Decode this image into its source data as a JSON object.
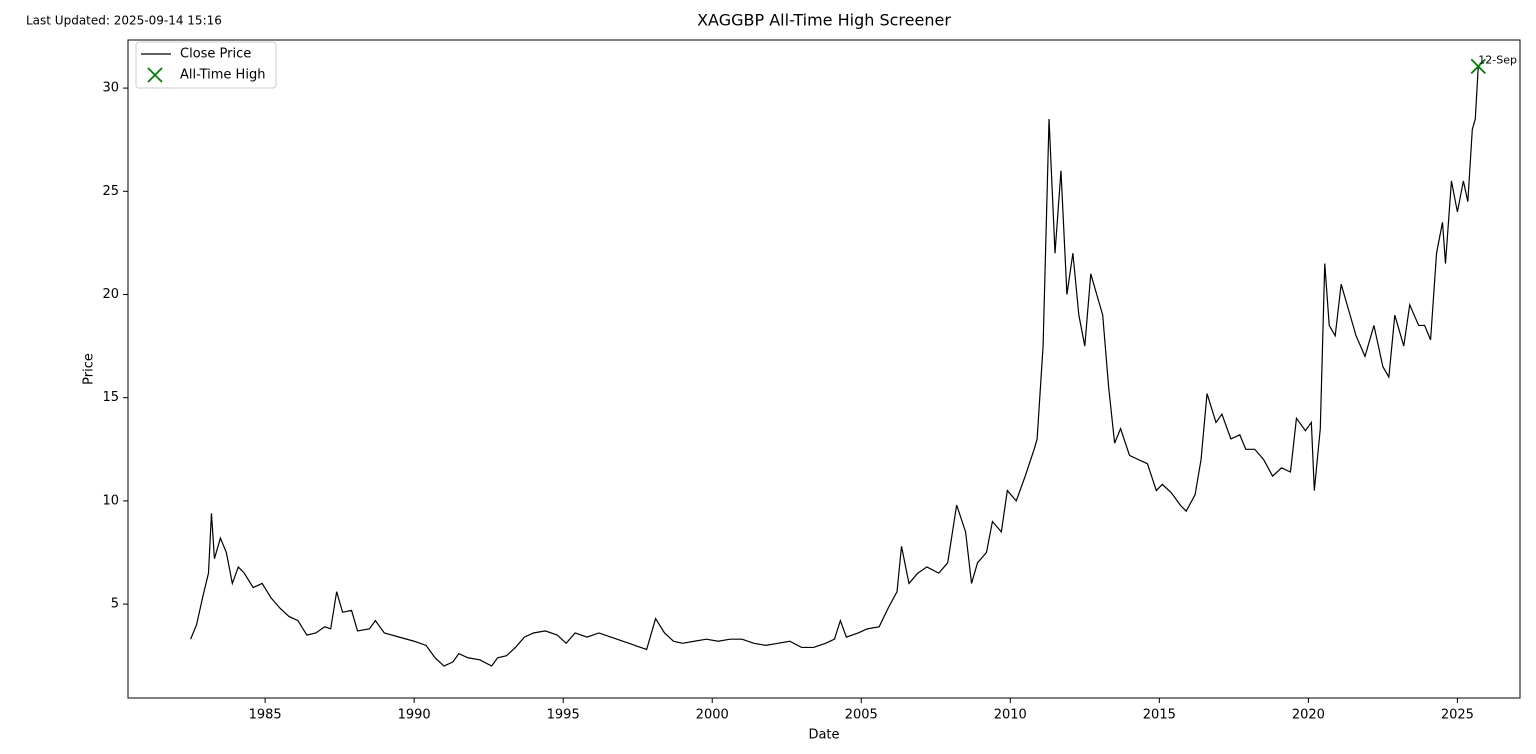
{
  "last_updated": "Last Updated: 2025-09-14 15:16",
  "chart_data": {
    "type": "line",
    "title": "XAGGBP All-Time High Screener",
    "xlabel": "Date",
    "ylabel": "Price",
    "xlim": [
      1980.4,
      2027.1
    ],
    "ylim": [
      0.45,
      32.33
    ],
    "xticks": [
      1985,
      1990,
      1995,
      2000,
      2005,
      2010,
      2015,
      2020,
      2025
    ],
    "yticks": [
      5,
      10,
      15,
      20,
      25,
      30
    ],
    "legend": "upper left",
    "x": [
      1982.5,
      1982.7,
      1982.9,
      1983.1,
      1983.2,
      1983.3,
      1983.5,
      1983.7,
      1983.9,
      1984.1,
      1984.3,
      1984.6,
      1984.9,
      1985.2,
      1985.5,
      1985.8,
      1986.1,
      1986.4,
      1986.7,
      1987.0,
      1987.2,
      1987.4,
      1987.6,
      1987.9,
      1988.1,
      1988.5,
      1988.7,
      1989.0,
      1989.5,
      1990.0,
      1990.4,
      1990.7,
      1991.0,
      1991.3,
      1991.5,
      1991.8,
      1992.2,
      1992.6,
      1992.8,
      1993.1,
      1993.4,
      1993.7,
      1994.0,
      1994.4,
      1994.8,
      1995.1,
      1995.4,
      1995.8,
      1996.2,
      1996.6,
      1997.0,
      1997.4,
      1997.8,
      1998.1,
      1998.4,
      1998.7,
      1999.0,
      1999.4,
      1999.8,
      2000.2,
      2000.6,
      2001.0,
      2001.4,
      2001.8,
      2002.2,
      2002.6,
      2003.0,
      2003.4,
      2003.8,
      2004.1,
      2004.3,
      2004.5,
      2004.9,
      2005.2,
      2005.6,
      2005.9,
      2006.2,
      2006.35,
      2006.6,
      2006.9,
      2007.2,
      2007.6,
      2007.9,
      2008.2,
      2008.5,
      2008.7,
      2008.9,
      2009.2,
      2009.4,
      2009.7,
      2009.9,
      2010.2,
      2010.5,
      2010.8,
      2010.9,
      2011.1,
      2011.3,
      2011.5,
      2011.7,
      2011.9,
      2012.1,
      2012.3,
      2012.5,
      2012.7,
      2012.9,
      2013.1,
      2013.3,
      2013.5,
      2013.7,
      2014.0,
      2014.3,
      2014.6,
      2014.9,
      2015.1,
      2015.4,
      2015.7,
      2015.9,
      2016.2,
      2016.4,
      2016.6,
      2016.9,
      2017.1,
      2017.4,
      2017.7,
      2017.9,
      2018.2,
      2018.5,
      2018.8,
      2019.1,
      2019.4,
      2019.6,
      2019.9,
      2020.1,
      2020.2,
      2020.4,
      2020.55,
      2020.7,
      2020.9,
      2021.1,
      2021.4,
      2021.6,
      2021.9,
      2022.2,
      2022.5,
      2022.7,
      2022.9,
      2023.2,
      2023.4,
      2023.7,
      2023.9,
      2024.1,
      2024.3,
      2024.5,
      2024.6,
      2024.8,
      2025.0,
      2025.2,
      2025.35,
      2025.5,
      2025.6,
      2025.7
    ],
    "series": [
      {
        "name": "Close Price",
        "color": "#000000",
        "values": [
          3.3,
          4.0,
          5.3,
          6.5,
          9.4,
          7.2,
          8.2,
          7.5,
          6.0,
          6.8,
          6.5,
          5.8,
          6.0,
          5.3,
          4.8,
          4.4,
          4.2,
          3.5,
          3.6,
          3.9,
          3.8,
          5.6,
          4.6,
          4.7,
          3.7,
          3.8,
          4.2,
          3.6,
          3.4,
          3.2,
          3.0,
          2.4,
          2.0,
          2.2,
          2.6,
          2.4,
          2.3,
          2.0,
          2.4,
          2.5,
          2.9,
          3.4,
          3.6,
          3.7,
          3.5,
          3.1,
          3.6,
          3.4,
          3.6,
          3.4,
          3.2,
          3.0,
          2.8,
          4.3,
          3.6,
          3.2,
          3.1,
          3.2,
          3.3,
          3.2,
          3.3,
          3.3,
          3.1,
          3.0,
          3.1,
          3.2,
          2.9,
          2.9,
          3.1,
          3.3,
          4.2,
          3.4,
          3.6,
          3.8,
          3.9,
          4.8,
          5.6,
          7.8,
          6.0,
          6.5,
          6.8,
          6.5,
          7.0,
          9.8,
          8.5,
          6.0,
          7.0,
          7.5,
          9.0,
          8.5,
          10.5,
          10.0,
          11.2,
          12.5,
          13.0,
          17.5,
          28.5,
          22.0,
          26.0,
          20.0,
          22.0,
          19.0,
          17.5,
          21.0,
          20.0,
          19.0,
          15.5,
          12.8,
          13.5,
          12.2,
          12.0,
          11.8,
          10.5,
          10.8,
          10.4,
          9.8,
          9.5,
          10.3,
          12.0,
          15.2,
          13.8,
          14.2,
          13.0,
          13.2,
          12.5,
          12.5,
          12.0,
          11.2,
          11.6,
          11.4,
          14.0,
          13.4,
          13.8,
          10.5,
          13.5,
          21.5,
          18.5,
          18.0,
          20.5,
          19.0,
          18.0,
          17.0,
          18.5,
          16.5,
          16.0,
          19.0,
          17.5,
          19.5,
          18.5,
          18.5,
          17.8,
          22.0,
          23.5,
          21.5,
          25.5,
          24.0,
          25.5,
          24.5,
          28.0,
          28.5,
          31.05
        ]
      }
    ],
    "highlight": {
      "type": "scatter",
      "name": "All-Time High",
      "color": "#008000",
      "x": [
        2025.7
      ],
      "values": [
        31.05
      ],
      "label": "12-Sep"
    }
  }
}
